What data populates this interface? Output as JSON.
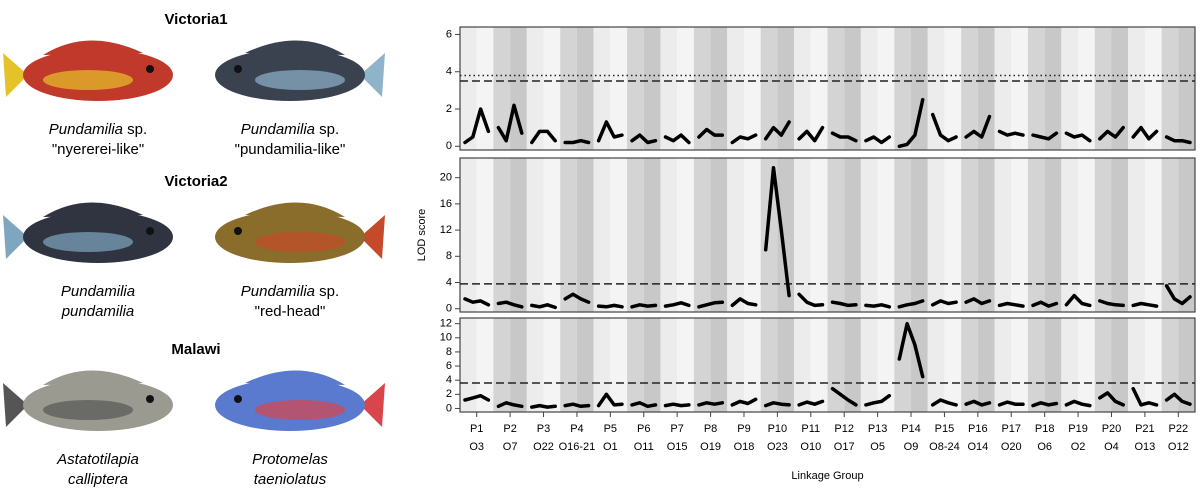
{
  "panel_a": {
    "groups": [
      {
        "title": "Victoria1",
        "fish": [
          {
            "line1": "Pundamilia",
            "line1_suffix": " sp.",
            "line2": "\"nyererei-like\"",
            "line2_italic": false
          },
          {
            "line1": "Pundamilia",
            "line1_suffix": " sp.",
            "line2": "\"pundamilia-like\"",
            "line2_italic": false
          }
        ]
      },
      {
        "title": "Victoria2",
        "fish": [
          {
            "line1": "Pundamilia",
            "line2": "pundamilia",
            "line2_italic": true
          },
          {
            "line1": "Pundamilia",
            "line1_suffix": " sp.",
            "line2": "\"red-head\"",
            "line2_italic": false
          }
        ]
      },
      {
        "title": "Malawi",
        "fish": [
          {
            "line1": "Astatotilapia",
            "line2": "calliptera",
            "line2_italic": true
          },
          {
            "line1": "Protomelas",
            "line2": "taeniolatus",
            "line2_italic": true
          }
        ]
      }
    ]
  },
  "chart_data": [
    {
      "type": "line",
      "color": "#000000",
      "ylim": [
        -0.2,
        6.4
      ],
      "yticks": [
        0,
        2,
        4,
        6
      ],
      "thresholds": [
        3.8,
        3.5
      ],
      "threshold_styles": [
        "dotted",
        "dashed"
      ],
      "values": [
        [
          0.2,
          0.5,
          2,
          0.8
        ],
        [
          1,
          0.3,
          2.2,
          0.7
        ],
        [
          0.2,
          0.8,
          0.8,
          0.3
        ],
        [
          0.2,
          0.2,
          0.3,
          0.2
        ],
        [
          0.3,
          1.3,
          0.5,
          0.6
        ],
        [
          0.3,
          0.6,
          0.2,
          0.3
        ],
        [
          0.5,
          0.3,
          0.6,
          0.2
        ],
        [
          0.5,
          0.9,
          0.6,
          0.6
        ],
        [
          0.2,
          0.5,
          0.4,
          0.6
        ],
        [
          0.4,
          1,
          0.6,
          1.3
        ],
        [
          0.4,
          0.8,
          0.3,
          1
        ],
        [
          0.7,
          0.5,
          0.5,
          0.3
        ],
        [
          0.3,
          0.5,
          0.2,
          0.5
        ],
        [
          0,
          0.1,
          0.6,
          2.5
        ],
        [
          1.7,
          0.6,
          0.3,
          0.5
        ],
        [
          0.5,
          0.8,
          0.5,
          1.6
        ],
        [
          0.8,
          0.6,
          0.7,
          0.6
        ],
        [
          0.6,
          0.5,
          0.4,
          0.7
        ],
        [
          0.7,
          0.5,
          0.6,
          0.3
        ],
        [
          0.4,
          0.8,
          0.5,
          1
        ],
        [
          0.5,
          1,
          0.4,
          0.8
        ],
        [
          0.5,
          0.3,
          0.3,
          0.2
        ]
      ]
    },
    {
      "type": "line",
      "color": "#000000",
      "ylim": [
        -0.5,
        23
      ],
      "yticks": [
        0,
        4,
        8,
        12,
        16,
        20
      ],
      "ylabel": "LOD score",
      "thresholds": [
        3.8
      ],
      "threshold_styles": [
        "dashed"
      ],
      "values": [
        [
          1.5,
          1,
          1.2,
          0.6
        ],
        [
          0.8,
          1,
          0.6,
          0.3
        ],
        [
          0.5,
          0.3,
          0.6,
          0.2
        ],
        [
          1.5,
          2.2,
          1.5,
          1
        ],
        [
          0.4,
          0.3,
          0.5,
          0.3
        ],
        [
          0.3,
          0.6,
          0.4,
          0.5
        ],
        [
          0.4,
          0.6,
          0.9,
          0.5
        ],
        [
          0.3,
          0.6,
          0.9,
          1
        ],
        [
          0.5,
          1.5,
          0.8,
          0.6
        ],
        [
          9,
          21.5,
          12,
          2
        ],
        [
          2.2,
          1,
          0.5,
          0.6
        ],
        [
          1,
          0.8,
          0.5,
          0.6
        ],
        [
          0.5,
          0.4,
          0.6,
          0.3
        ],
        [
          0.3,
          0.6,
          0.8,
          1.2
        ],
        [
          0.6,
          1.2,
          0.8,
          1
        ],
        [
          1,
          1.5,
          0.8,
          1.2
        ],
        [
          0.5,
          0.8,
          0.6,
          0.4
        ],
        [
          0.5,
          1,
          0.4,
          0.8
        ],
        [
          0.6,
          2,
          0.8,
          0.5
        ],
        [
          1.2,
          0.8,
          0.6,
          0.5
        ],
        [
          0.5,
          0.8,
          0.6,
          0.4
        ],
        [
          3.5,
          1.5,
          0.8,
          1.8
        ]
      ]
    },
    {
      "type": "line",
      "color": "#000000",
      "ylim": [
        -0.5,
        12.8
      ],
      "yticks": [
        0,
        2,
        4,
        6,
        8,
        10,
        12
      ],
      "thresholds": [
        3.6
      ],
      "threshold_styles": [
        "dashed"
      ],
      "xlabel": "Linkage Group",
      "categories": [
        "P1",
        "P2",
        "P3",
        "P4",
        "P5",
        "P6",
        "P7",
        "P8",
        "P9",
        "P10",
        "P11",
        "P12",
        "P13",
        "P14",
        "P15",
        "P16",
        "P17",
        "P18",
        "P19",
        "P20",
        "P21",
        "P22"
      ],
      "categories2": [
        "O3",
        "O7",
        "O22",
        "O16-21",
        "O1",
        "O11",
        "O15",
        "O19",
        "O18",
        "O23",
        "O10",
        "O17",
        "O5",
        "O9",
        "O8-24",
        "O14",
        "O20",
        "O6",
        "O2",
        "O4",
        "O13",
        "O12"
      ],
      "values": [
        [
          1.2,
          1.5,
          1.8,
          1.2
        ],
        [
          0.3,
          0.8,
          0.5,
          0.3
        ],
        [
          0.2,
          0.4,
          0.2,
          0.3
        ],
        [
          0.4,
          0.6,
          0.3,
          0.4
        ],
        [
          0.4,
          2,
          0.5,
          0.6
        ],
        [
          0.5,
          0.8,
          0.3,
          0.5
        ],
        [
          0.4,
          0.6,
          0.4,
          0.5
        ],
        [
          0.5,
          0.8,
          0.6,
          0.8
        ],
        [
          0.5,
          1,
          0.7,
          1.3
        ],
        [
          0.4,
          0.8,
          0.6,
          0.5
        ],
        [
          0.5,
          0.9,
          0.6,
          1
        ],
        [
          2.8,
          2,
          1.2,
          0.5
        ],
        [
          0.5,
          0.8,
          1,
          1.8
        ],
        [
          7,
          12,
          9,
          4.5
        ],
        [
          0.5,
          1.2,
          0.8,
          0.5
        ],
        [
          0.6,
          1,
          0.5,
          0.8
        ],
        [
          0.5,
          0.9,
          0.6,
          0.6
        ],
        [
          0.4,
          0.8,
          0.5,
          0.7
        ],
        [
          0.5,
          1,
          0.6,
          0.4
        ],
        [
          1.5,
          2.2,
          1,
          0.5
        ],
        [
          2.8,
          0.5,
          0.8,
          0.5
        ],
        [
          1.2,
          2,
          1,
          0.6
        ]
      ]
    }
  ]
}
